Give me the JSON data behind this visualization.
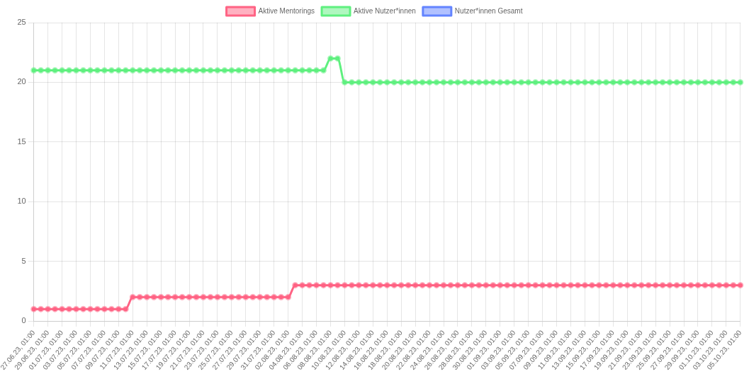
{
  "chart_data": {
    "type": "line",
    "categories": [
      "27.06.23, 01:00",
      null,
      "29.06.23, 01:00",
      null,
      "01.07.23, 01:00",
      null,
      "03.07.23, 01:00",
      null,
      "05.07.23, 01:00",
      null,
      "07.07.23, 01:00",
      null,
      "09.07.23, 01:00",
      null,
      "11.07.23, 01:00",
      null,
      "13.07.23, 01:00",
      null,
      "15.07.23, 01:00",
      null,
      "17.07.23, 01:00",
      null,
      "19.07.23, 01:00",
      null,
      "21.07.23, 01:00",
      null,
      "23.07.23, 01:00",
      null,
      "25.07.23, 01:00",
      null,
      "27.07.23, 01:00",
      null,
      "29.07.23, 01:00",
      null,
      "31.07.23, 01:00",
      null,
      "02.08.23, 01:00",
      null,
      "04.08.23, 01:00",
      null,
      "06.08.23, 01:00",
      null,
      "08.08.23, 01:00",
      null,
      "10.08.23, 01:00",
      null,
      "12.08.23, 01:00",
      null,
      "14.08.23, 01:00",
      null,
      "16.08.23, 01:00",
      null,
      "18.08.23, 01:00",
      null,
      "20.08.23, 01:00",
      null,
      "22.08.23, 01:00",
      null,
      "24.08.23, 01:00",
      null,
      "26.08.23, 01:00",
      null,
      "28.08.23, 01:00",
      null,
      "30.08.23, 01:00",
      null,
      "01.09.23, 01:00",
      null,
      "03.09.23, 01:00",
      null,
      "05.09.23, 01:00",
      null,
      "07.09.23, 01:00",
      null,
      "09.09.23, 01:00",
      null,
      "11.09.23, 01:00",
      null,
      "13.09.23, 01:00",
      null,
      "15.09.23, 01:00",
      null,
      "17.09.23, 01:00",
      null,
      "19.09.23, 01:00",
      null,
      "21.09.23, 01:00",
      null,
      "23.09.23, 01:00",
      null,
      "25.09.23, 01:00",
      null,
      "27.09.23, 01:00",
      null,
      "29.09.23, 01:00",
      null,
      "01.10.23, 01:00",
      null,
      "03.10.23, 01:00",
      null,
      "05.10.23, 01:00"
    ],
    "series": [
      {
        "name": "Aktive Mentorings",
        "color": "#ff6384",
        "values": [
          1,
          1,
          1,
          1,
          1,
          1,
          1,
          1,
          1,
          1,
          1,
          1,
          1,
          1,
          2,
          2,
          2,
          2,
          2,
          2,
          2,
          2,
          2,
          2,
          2,
          2,
          2,
          2,
          2,
          2,
          2,
          2,
          2,
          2,
          2,
          2,
          2,
          3,
          3,
          3,
          3,
          3,
          3,
          3,
          3,
          3,
          3,
          3,
          3,
          3,
          3,
          3,
          3,
          3,
          3,
          3,
          3,
          3,
          3,
          3,
          3,
          3,
          3,
          3,
          3,
          3,
          3,
          3,
          3,
          3,
          3,
          3,
          3,
          3,
          3,
          3,
          3,
          3,
          3,
          3,
          3,
          3,
          3,
          3,
          3,
          3,
          3,
          3,
          3,
          3,
          3,
          3,
          3,
          3,
          3,
          3,
          3,
          3,
          3,
          3,
          3
        ]
      },
      {
        "name": "Aktive Nutzer*innen",
        "color": "#5ff07f",
        "values": [
          21,
          21,
          21,
          21,
          21,
          21,
          21,
          21,
          21,
          21,
          21,
          21,
          21,
          21,
          21,
          21,
          21,
          21,
          21,
          21,
          21,
          21,
          21,
          21,
          21,
          21,
          21,
          21,
          21,
          21,
          21,
          21,
          21,
          21,
          21,
          21,
          21,
          21,
          21,
          21,
          21,
          21,
          22,
          22,
          20,
          20,
          20,
          20,
          20,
          20,
          20,
          20,
          20,
          20,
          20,
          20,
          20,
          20,
          20,
          20,
          20,
          20,
          20,
          20,
          20,
          20,
          20,
          20,
          20,
          20,
          20,
          20,
          20,
          20,
          20,
          20,
          20,
          20,
          20,
          20,
          20,
          20,
          20,
          20,
          20,
          20,
          20,
          20,
          20,
          20,
          20,
          20,
          20,
          20,
          20,
          20,
          20,
          20,
          20,
          20,
          20
        ]
      },
      {
        "name": "Nutzer*innen Gesamt",
        "color": "#6384ff",
        "values": [
          null,
          null,
          null,
          null,
          null,
          null,
          null,
          null,
          null,
          null,
          null,
          null,
          null,
          null,
          null,
          null,
          null,
          null,
          null,
          null,
          null,
          null,
          null,
          null,
          null,
          null,
          null,
          null,
          null,
          null,
          null,
          null,
          null,
          null,
          null,
          null,
          null,
          null,
          null,
          null,
          null,
          null,
          null,
          null,
          null,
          null,
          null,
          null,
          null,
          null,
          null,
          null,
          null,
          null,
          null,
          null,
          null,
          null,
          null,
          null,
          null,
          null,
          null,
          null,
          null,
          null,
          null,
          null,
          null,
          null,
          null,
          null,
          null,
          null,
          null,
          null,
          null,
          null,
          null,
          null,
          null,
          null,
          null,
          null,
          null,
          null,
          null,
          null,
          null,
          null,
          null,
          null,
          null,
          null,
          null,
          null,
          null,
          null,
          null,
          null,
          null
        ]
      }
    ],
    "ylim": [
      0,
      25
    ],
    "yticks": [
      0,
      5,
      10,
      15,
      20,
      25
    ],
    "grid": true,
    "legend": "top",
    "marker": "circle",
    "line_style": "solid"
  }
}
